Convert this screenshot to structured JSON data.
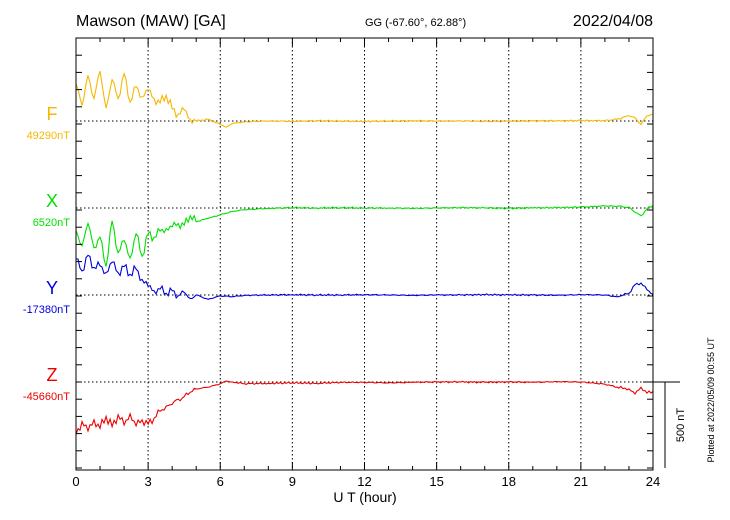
{
  "header": {
    "station": "Mawson (MAW)  [GA]",
    "coords": "GG (-67.60°,  62.88°)",
    "date": "2022/04/08"
  },
  "footer": {
    "plotted_at": "Plotted at 2022/05/09 00:55 UT",
    "scale_label": "500 nT"
  },
  "colors": {
    "F": "#f5b800",
    "X": "#00e000",
    "Y": "#0000dd",
    "Z": "#ee0000"
  },
  "chart_data": {
    "type": "line",
    "xlabel": "U T (hour)",
    "xlim": [
      0,
      24
    ],
    "xticks": [
      0,
      3,
      6,
      9,
      12,
      15,
      18,
      21,
      24
    ],
    "xtick_labels": [
      "0",
      "3",
      "6",
      "9",
      "12",
      "15",
      "18",
      "21",
      "24"
    ],
    "grid": true,
    "scale_bar_nT": 500,
    "series": [
      {
        "name": "F",
        "baseline_label": "49290nT",
        "baseline_nT": 49290,
        "x": [
          0,
          0.25,
          0.5,
          0.75,
          1,
          1.25,
          1.5,
          1.75,
          2,
          2.25,
          2.5,
          2.75,
          3,
          3.25,
          3.5,
          3.75,
          4,
          4.25,
          4.5,
          4.75,
          5,
          5.5,
          6,
          6.25,
          6.5,
          7,
          8,
          9,
          10,
          11,
          12,
          13,
          14,
          15,
          16,
          17,
          18,
          19,
          20,
          21,
          22,
          22.5,
          23,
          23.25,
          23.5,
          23.75,
          24
        ],
        "y": [
          49505,
          49380,
          49555,
          49420,
          49580,
          49365,
          49530,
          49420,
          49565,
          49400,
          49490,
          49430,
          49470,
          49420,
          49395,
          49440,
          49360,
          49330,
          49355,
          49300,
          49290,
          49300,
          49270,
          49255,
          49275,
          49285,
          49290,
          49288,
          49292,
          49290,
          49288,
          49290,
          49292,
          49290,
          49290,
          49288,
          49288,
          49290,
          49290,
          49292,
          49292,
          49300,
          49320,
          49310,
          49270,
          49320,
          49330
        ]
      },
      {
        "name": "X",
        "baseline_label": "6520nT",
        "baseline_nT": 6520,
        "x": [
          0,
          0.25,
          0.5,
          0.75,
          1,
          1.25,
          1.5,
          1.75,
          2,
          2.25,
          2.5,
          2.75,
          3,
          3.25,
          3.5,
          3.75,
          4,
          4.25,
          4.5,
          4.75,
          5,
          5.5,
          6,
          6.5,
          7,
          8,
          9,
          10,
          11,
          12,
          13,
          14,
          15,
          16,
          17,
          18,
          19,
          20,
          21,
          22,
          22.5,
          23,
          23.25,
          23.5,
          23.75,
          24
        ],
        "y": [
          6390,
          6300,
          6430,
          6290,
          6350,
          6180,
          6445,
          6260,
          6330,
          6230,
          6370,
          6240,
          6370,
          6350,
          6385,
          6400,
          6410,
          6430,
          6420,
          6475,
          6440,
          6460,
          6480,
          6500,
          6510,
          6518,
          6522,
          6520,
          6522,
          6520,
          6520,
          6518,
          6520,
          6522,
          6520,
          6518,
          6520,
          6522,
          6525,
          6532,
          6530,
          6525,
          6495,
          6475,
          6515,
          6535
        ]
      },
      {
        "name": "Y",
        "baseline_label": "-17380nT",
        "baseline_nT": -17380,
        "x": [
          0,
          0.25,
          0.5,
          0.75,
          1,
          1.25,
          1.5,
          1.75,
          2,
          2.25,
          2.5,
          2.75,
          3,
          3.25,
          3.5,
          3.75,
          4,
          4.25,
          4.5,
          4.75,
          5,
          5.5,
          6,
          6.5,
          7,
          8,
          9,
          10,
          11,
          12,
          13,
          14,
          15,
          16,
          17,
          18,
          19,
          20,
          21,
          22,
          22.5,
          23,
          23.25,
          23.5,
          23.75,
          24
        ],
        "y": [
          -17170,
          -17240,
          -17150,
          -17220,
          -17210,
          -17250,
          -17190,
          -17250,
          -17215,
          -17260,
          -17230,
          -17290,
          -17330,
          -17355,
          -17345,
          -17370,
          -17355,
          -17385,
          -17365,
          -17400,
          -17380,
          -17405,
          -17385,
          -17390,
          -17382,
          -17380,
          -17378,
          -17380,
          -17380,
          -17378,
          -17380,
          -17382,
          -17380,
          -17380,
          -17378,
          -17380,
          -17380,
          -17382,
          -17378,
          -17380,
          -17390,
          -17370,
          -17320,
          -17310,
          -17350,
          -17375
        ]
      },
      {
        "name": "Z",
        "baseline_label": "-45660nT",
        "baseline_nT": -45660,
        "x": [
          0,
          0.25,
          0.5,
          0.75,
          1,
          1.25,
          1.5,
          1.75,
          2,
          2.25,
          2.5,
          2.75,
          3,
          3.25,
          3.5,
          3.75,
          4,
          4.25,
          4.5,
          4.75,
          5,
          5.5,
          6,
          6.25,
          6.5,
          7,
          8,
          9,
          10,
          11,
          12,
          13,
          14,
          15,
          16,
          17,
          18,
          19,
          20,
          21,
          22,
          22.5,
          23,
          23.25,
          23.5,
          23.75,
          24
        ],
        "y": [
          -45965,
          -45890,
          -45945,
          -45880,
          -45930,
          -45860,
          -45920,
          -45850,
          -45910,
          -45845,
          -45915,
          -45880,
          -45905,
          -45870,
          -45830,
          -45800,
          -45790,
          -45760,
          -45745,
          -45720,
          -45700,
          -45690,
          -45670,
          -45655,
          -45660,
          -45670,
          -45668,
          -45665,
          -45668,
          -45662,
          -45662,
          -45665,
          -45662,
          -45660,
          -45660,
          -45662,
          -45660,
          -45662,
          -45658,
          -45660,
          -45672,
          -45690,
          -45700,
          -45730,
          -45690,
          -45725,
          -45715
        ]
      }
    ]
  }
}
